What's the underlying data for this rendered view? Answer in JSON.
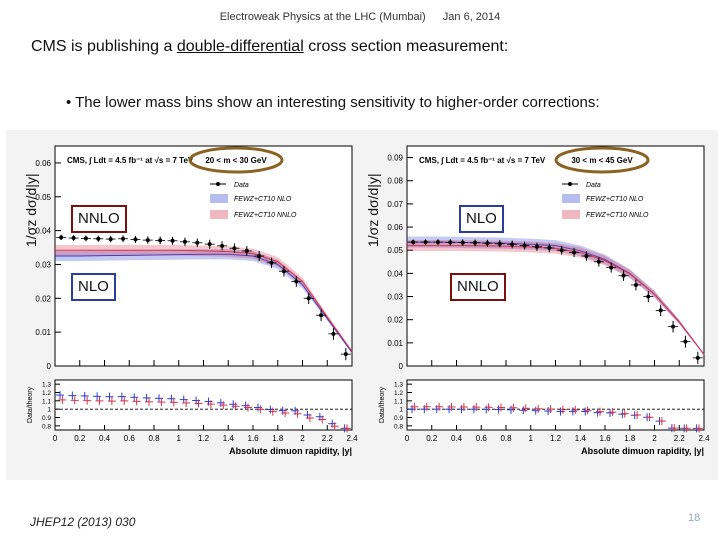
{
  "header": {
    "conference": "Electroweak Physics at the LHC (Mumbai)",
    "date": "Jan 6, 2014"
  },
  "title": {
    "pre": "CMS is publishing a ",
    "emph": "double-differential",
    "post": " cross section measurement:"
  },
  "bullet": "• The lower mass bins show an interesting sensitivity to higher-order corrections:",
  "reference": "JHEP12 (2013) 030",
  "page_number": "18",
  "chart_data": [
    {
      "type": "scatter",
      "ylabel": "1/σz dσ/d|y|",
      "xlabel": "Absolute dimuon rapidity, |y|",
      "ratio_ylabel": "Data/theory",
      "cms_label": "CMS, ∫ Ldt = 4.5 fb⁻¹ at √s = 7 TeV",
      "mass_bin": "20 < m < 30 GeV",
      "legend": [
        "Data",
        "FEWZ+CT10 NLO",
        "FEWZ+CT10 NNLO"
      ],
      "annotations": [
        "NNLO",
        "NLO"
      ],
      "yticks": [
        "0",
        "0.01",
        "0.02",
        "0.03",
        "0.04",
        "0.05",
        "0.06"
      ],
      "xticks": [
        "0",
        "0.2",
        "0.4",
        "0.6",
        "0.8",
        "1",
        "1.2",
        "1.4",
        "1.6",
        "1.8",
        "2",
        "2.2",
        "2.4"
      ],
      "ratio_yticks": [
        "0.8",
        "0.9",
        "1",
        "1.1",
        "1.2",
        "1.3"
      ],
      "ylim": [
        0,
        0.065
      ],
      "xlim": [
        0,
        2.4
      ],
      "ratio_ylim": [
        0.75,
        1.35
      ],
      "series": [
        {
          "name": "Data",
          "x": [
            0.05,
            0.15,
            0.25,
            0.35,
            0.45,
            0.55,
            0.65,
            0.75,
            0.85,
            0.95,
            1.05,
            1.15,
            1.25,
            1.35,
            1.45,
            1.55,
            1.65,
            1.75,
            1.85,
            1.95,
            2.05,
            2.15,
            2.25,
            2.35
          ],
          "values": [
            0.038,
            0.0378,
            0.0377,
            0.0376,
            0.0375,
            0.0376,
            0.0374,
            0.0372,
            0.0371,
            0.037,
            0.0367,
            0.0364,
            0.036,
            0.0355,
            0.0348,
            0.034,
            0.0325,
            0.0305,
            0.028,
            0.025,
            0.02,
            0.015,
            0.0095,
            0.0035
          ]
        },
        {
          "name": "FEWZ+CT10 NLO",
          "x": [
            0,
            0.2,
            0.4,
            0.6,
            0.8,
            1.0,
            1.2,
            1.4,
            1.6,
            1.8,
            2.0,
            2.2,
            2.4
          ],
          "values": [
            0.0325,
            0.0325,
            0.0326,
            0.0327,
            0.0328,
            0.0329,
            0.033,
            0.033,
            0.0325,
            0.03,
            0.024,
            0.014,
            0.004
          ]
        },
        {
          "name": "FEWZ+CT10 NNLO",
          "x": [
            0,
            0.2,
            0.4,
            0.6,
            0.8,
            1.0,
            1.2,
            1.4,
            1.6,
            1.8,
            2.0,
            2.2,
            2.4
          ],
          "values": [
            0.0342,
            0.0342,
            0.0342,
            0.0342,
            0.0342,
            0.0342,
            0.034,
            0.0338,
            0.0332,
            0.0308,
            0.025,
            0.0145,
            0.0043
          ]
        }
      ]
    },
    {
      "type": "scatter",
      "ylabel": "1/σz dσ/d|y|",
      "xlabel": "Absolute dimuon rapidity, |y|",
      "ratio_ylabel": "Data/theory",
      "cms_label": "CMS, ∫ Ldt = 4.5 fb⁻¹ at √s = 7 TeV",
      "mass_bin": "30 < m < 45 GeV",
      "legend": [
        "Data",
        "FEWZ+CT10 NLO",
        "FEWZ+CT10 NNLO"
      ],
      "annotations": [
        "NLO",
        "NNLO"
      ],
      "yticks": [
        "0",
        "0.01",
        "0.02",
        "0.03",
        "0.04",
        "0.05",
        "0.06",
        "0.07",
        "0.08",
        "0.09"
      ],
      "xticks": [
        "0",
        "0.2",
        "0.4",
        "0.6",
        "0.8",
        "1",
        "1.2",
        "1.4",
        "1.6",
        "1.8",
        "2",
        "2.2",
        "2.4"
      ],
      "ratio_yticks": [
        "0.8",
        "0.9",
        "1",
        "1.1",
        "1.2",
        "1.3"
      ],
      "ylim": [
        0,
        0.095
      ],
      "xlim": [
        0,
        2.4
      ],
      "ratio_ylim": [
        0.75,
        1.35
      ],
      "series": [
        {
          "name": "Data",
          "x": [
            0.05,
            0.15,
            0.25,
            0.35,
            0.45,
            0.55,
            0.65,
            0.75,
            0.85,
            0.95,
            1.05,
            1.15,
            1.25,
            1.35,
            1.45,
            1.55,
            1.65,
            1.75,
            1.85,
            1.95,
            2.05,
            2.15,
            2.25,
            2.35
          ],
          "values": [
            0.0535,
            0.0535,
            0.0535,
            0.0534,
            0.0533,
            0.0532,
            0.053,
            0.0528,
            0.0525,
            0.052,
            0.0515,
            0.051,
            0.05,
            0.049,
            0.0475,
            0.045,
            0.0425,
            0.039,
            0.035,
            0.03,
            0.024,
            0.017,
            0.0105,
            0.0035
          ]
        },
        {
          "name": "FEWZ+CT10 NLO",
          "x": [
            0,
            0.2,
            0.4,
            0.6,
            0.8,
            1.0,
            1.2,
            1.4,
            1.6,
            1.8,
            2.0,
            2.2,
            2.4
          ],
          "values": [
            0.0535,
            0.0535,
            0.0534,
            0.0532,
            0.053,
            0.0526,
            0.052,
            0.0498,
            0.046,
            0.04,
            0.031,
            0.019,
            0.005
          ]
        },
        {
          "name": "FEWZ+CT10 NNLO",
          "x": [
            0,
            0.2,
            0.4,
            0.6,
            0.8,
            1.0,
            1.2,
            1.4,
            1.6,
            1.8,
            2.0,
            2.2,
            2.4
          ],
          "values": [
            0.052,
            0.052,
            0.052,
            0.0519,
            0.0517,
            0.0514,
            0.0508,
            0.049,
            0.0455,
            0.0398,
            0.031,
            0.019,
            0.005
          ]
        }
      ]
    }
  ],
  "colors": {
    "data": "#000000",
    "nlo": "#2b3fcf",
    "nnlo": "#d8324a",
    "oval": "#8a6322",
    "box_nnlo": "#7a1010",
    "box_nlo": "#2a3c9c",
    "page_number": "#9aa6c7"
  }
}
